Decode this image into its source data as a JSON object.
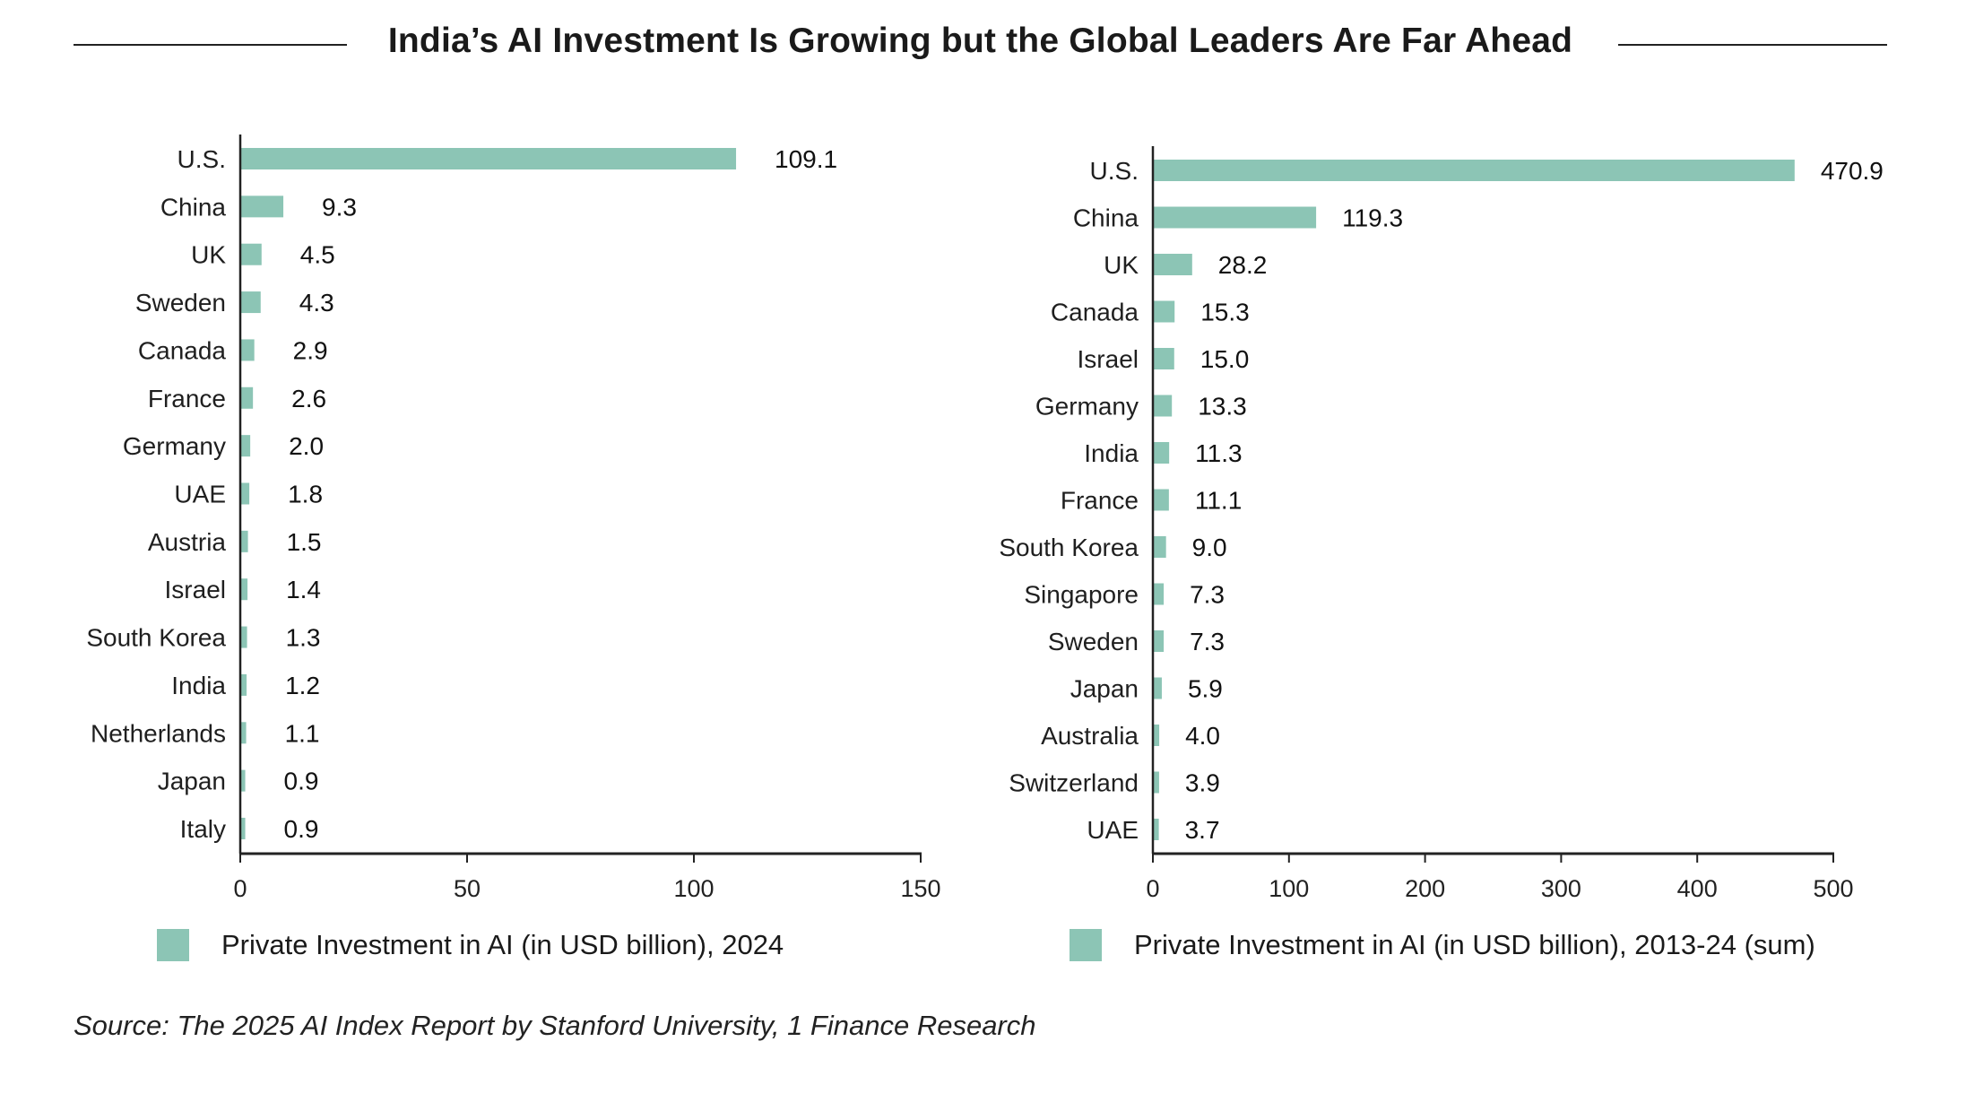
{
  "colors": {
    "bar": "#8cc5b5",
    "axis": "#222222",
    "text": "#1a1a1a"
  },
  "title": "India’s AI Investment Is Growing but the Global Leaders Are Far Ahead",
  "source": "Source: The 2025 AI Index Report by Stanford University, 1 Finance Research",
  "chart_data": [
    {
      "type": "bar",
      "orientation": "horizontal",
      "title": "",
      "xlabel": "",
      "ylabel": "",
      "xlim": [
        0,
        150
      ],
      "xticks": [
        "0",
        "50",
        "100",
        "150"
      ],
      "xtick_values": [
        0,
        50,
        100,
        150
      ],
      "grid": false,
      "legend": "Private Investment in AI (in USD billion), 2024",
      "legend_position": "bottom",
      "categories": [
        "U.S.",
        "China",
        "UK",
        "Sweden",
        "Canada",
        "France",
        "Germany",
        "UAE",
        "Austria",
        "Israel",
        "South Korea",
        "India",
        "Netherlands",
        "Japan",
        "Italy"
      ],
      "values": [
        109.1,
        9.3,
        4.5,
        4.3,
        2.9,
        2.6,
        2.0,
        1.8,
        1.5,
        1.4,
        1.3,
        1.2,
        1.1,
        0.9,
        0.9
      ],
      "labels": [
        "109.1",
        "9.3",
        "4.5",
        "4.3",
        "2.9",
        "2.6",
        "2.0",
        "1.8",
        "1.5",
        "1.4",
        "1.3",
        "1.2",
        "1.1",
        "0.9",
        "0.9"
      ]
    },
    {
      "type": "bar",
      "orientation": "horizontal",
      "title": "",
      "xlabel": "",
      "ylabel": "",
      "xlim": [
        0,
        500
      ],
      "xticks": [
        "0",
        "100",
        "200",
        "300",
        "400",
        "500"
      ],
      "xtick_values": [
        0,
        100,
        200,
        300,
        400,
        500
      ],
      "grid": false,
      "legend": "Private Investment in AI (in USD billion), 2013-24 (sum)",
      "legend_position": "bottom",
      "categories": [
        "U.S.",
        "China",
        "UK",
        "Canada",
        "Israel",
        "Germany",
        "India",
        "France",
        "South Korea",
        "Singapore",
        "Sweden",
        "Japan",
        "Australia",
        "Switzerland",
        "UAE"
      ],
      "values": [
        470.9,
        119.3,
        28.2,
        15.3,
        15.0,
        13.3,
        11.3,
        11.1,
        9.0,
        7.3,
        7.3,
        5.9,
        4.0,
        3.9,
        3.7
      ],
      "labels": [
        "470.9",
        "119.3",
        "28.2",
        "15.3",
        "15.0",
        "13.3",
        "11.3",
        "11.1",
        "9.0",
        "7.3",
        "7.3",
        "5.9",
        "4.0",
        "3.9",
        "3.7"
      ]
    }
  ]
}
